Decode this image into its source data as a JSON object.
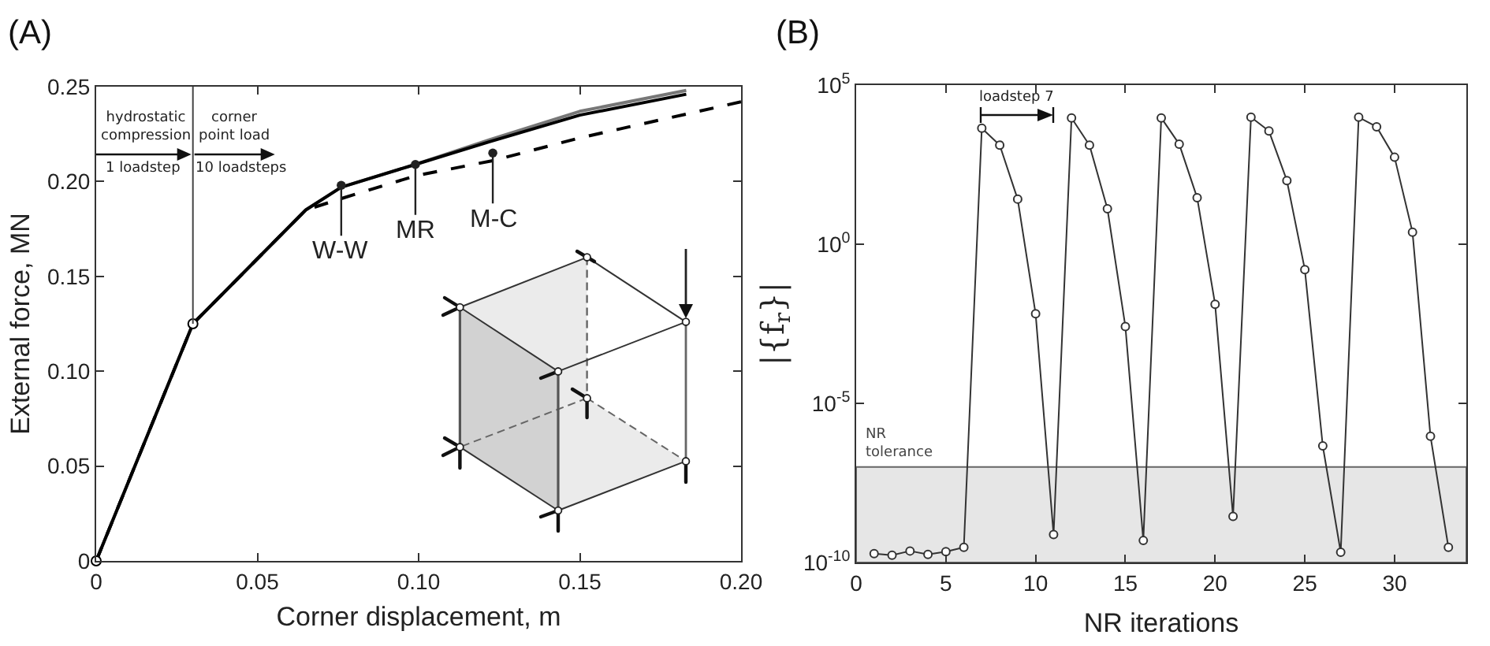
{
  "chart_data": [
    {
      "type": "line",
      "title": "(A)",
      "xlabel": "Corner displacement, m",
      "ylabel": "External force, MN",
      "xlim": [
        0,
        0.2
      ],
      "xticks": [
        0,
        0.05,
        {
          "value": 0.1,
          "label": "0.10"
        },
        0.15,
        {
          "value": 0.2,
          "label": "0.20"
        }
      ],
      "ylim": [
        0,
        0.25
      ],
      "yticks": [
        0,
        0.05,
        {
          "value": 0.1,
          "label": "0.10"
        },
        0.15,
        {
          "value": 0.2,
          "label": "0.20"
        },
        0.25
      ],
      "series": [
        {
          "color": "#777777",
          "x": [
            0,
            0.03,
            0.065,
            0.076,
            0.099,
            0.122,
            0.15,
            0.183
          ],
          "values": [
            0,
            0.125,
            0.185,
            0.197,
            0.209,
            0.222,
            0.237,
            0.248
          ]
        },
        {
          "color": "#000000",
          "x": [
            0,
            0.03,
            0.065,
            0.076,
            0.099,
            0.122,
            0.15,
            0.183
          ],
          "values": [
            0,
            0.125,
            0.185,
            0.197,
            0.209,
            0.221,
            0.235,
            0.246
          ]
        },
        {
          "color": "#000000",
          "line_style": "dashed",
          "x": [
            0,
            0.03,
            0.065,
            0.076,
            0.099,
            0.123,
            0.15,
            0.2
          ],
          "values": [
            0,
            0.125,
            0.185,
            0.191,
            0.203,
            0.211,
            0.223,
            0.242
          ]
        },
        {
          "type": "scatter",
          "marker": "circle",
          "color": "#000000",
          "x": [
            0,
            0.03
          ],
          "values": [
            0,
            0.125
          ]
        }
      ],
      "ref_lines": [
        {
          "axis": "x",
          "value": 0.03
        }
      ],
      "annotations": [
        "hydrostatic\ncompression",
        "1 loadstep",
        "corner\npoint load",
        "10 loadsteps",
        {
          "text": "W-W",
          "x": 0.076,
          "y": 0.198
        },
        {
          "text": "MR",
          "x": 0.099,
          "y": 0.209
        },
        {
          "text": "M-C",
          "x": 0.123,
          "y": 0.215
        }
      ]
    },
    {
      "type": "line",
      "title": "(B)",
      "xlabel": "NR iterations",
      "ylabel": "|{f$_{r}$}|",
      "log": "y",
      "xlim": [
        0,
        34
      ],
      "xticks": [
        0,
        5,
        10,
        15,
        20,
        25,
        30
      ],
      "ylim": [
        1e-10,
        100000
      ],
      "yticks": [
        {
          "value": 1e-10,
          "label": "10$^{-10}$"
        },
        {
          "value": 1e-05,
          "label": "10$^{-5}$"
        },
        {
          "value": 1,
          "label": "10$^{0}$"
        },
        {
          "value": 100000,
          "label": "10$^{5}$"
        }
      ],
      "x": [
        1,
        2,
        3,
        4,
        5,
        6,
        7,
        8,
        9,
        10,
        11,
        12,
        13,
        14,
        15,
        16,
        17,
        18,
        19,
        20,
        21,
        22,
        23,
        24,
        25,
        26,
        27,
        28,
        29,
        30,
        31,
        32,
        33
      ],
      "values": [
        1.9e-10,
        1.7e-10,
        2.3e-10,
        1.8e-10,
        2.2e-10,
        3e-10,
        4400,
        1300,
        26,
        0.0065,
        7.6e-10,
        9300,
        1300,
        13,
        0.0026,
        4.9e-10,
        9300,
        1400,
        29,
        0.013,
        2.8e-09,
        9800,
        3600,
        100,
        0.16,
        4.6e-07,
        2.1e-10,
        9800,
        4900,
        540,
        2.4,
        9.3e-07,
        3e-10
      ],
      "color": "#333333",
      "marker": "circle",
      "bands": [
        {
          "axis": "y",
          "from": 1e-10,
          "to": 1e-07,
          "label": "NR\ntolerance",
          "color": "#e6e6e6"
        }
      ],
      "annotations": [
        "loadstep 7"
      ]
    }
  ]
}
